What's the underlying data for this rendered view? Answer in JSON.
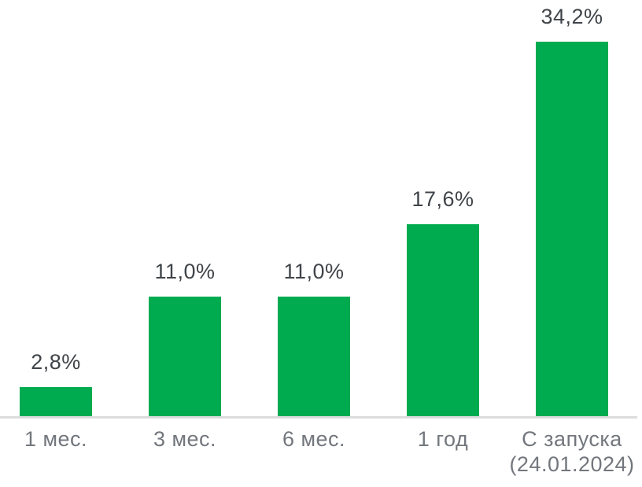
{
  "chart_data": {
    "type": "bar",
    "categories": [
      "1 мес.",
      "3 мес.",
      "6 мес.",
      "1 год",
      "С запуска\n(24.01.2024)"
    ],
    "values": [
      2.8,
      11.0,
      11.0,
      17.6,
      34.2
    ],
    "value_labels": [
      "2,8%",
      "11,0%",
      "11,0%",
      "17,6%",
      "34,2%"
    ],
    "title": "",
    "xlabel": "",
    "ylabel": "",
    "ylim": [
      0,
      38
    ],
    "grid": false,
    "legend": false,
    "layout_hints": {
      "value_labels_position": "above-bars",
      "axis_line": "bottom-only"
    },
    "colors": {
      "bar": "#00ab50",
      "value_label_text": "#3f4449",
      "category_label_text": "#73777d",
      "axis_line": "#dcdcdc",
      "background": "#ffffff"
    }
  }
}
